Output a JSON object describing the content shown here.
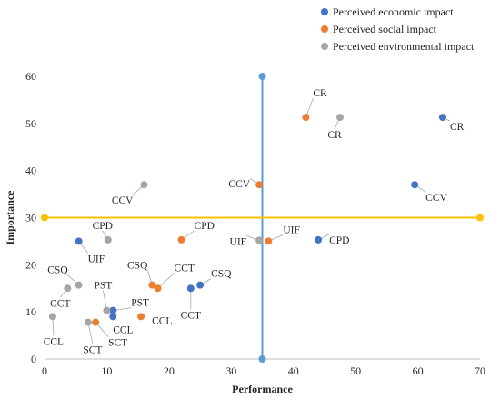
{
  "chart_data": {
    "type": "scatter",
    "title": "",
    "xlabel": "Performance",
    "ylabel": "Importance",
    "xlim": [
      0,
      70
    ],
    "ylim": [
      0,
      60
    ],
    "xticks": [
      0,
      10,
      20,
      30,
      40,
      50,
      60,
      70
    ],
    "yticks": [
      0,
      10,
      20,
      30,
      40,
      50,
      60
    ],
    "grid": false,
    "legend_position": "top-right",
    "reference_lines": [
      {
        "orientation": "vertical",
        "x": 35,
        "y_range": [
          0,
          60
        ],
        "color": "#5b9bd5"
      },
      {
        "orientation": "horizontal",
        "y": 30,
        "x_range": [
          0,
          70
        ],
        "color": "#ffc000"
      }
    ],
    "series": [
      {
        "name": "Perceived economic impact",
        "color": "#4472c4",
        "points": [
          {
            "label": "CR",
            "x": 64,
            "y": 51.3
          },
          {
            "label": "CCV",
            "x": 59.5,
            "y": 37
          },
          {
            "label": "CPD",
            "x": 44,
            "y": 25.3
          },
          {
            "label": "UIF",
            "x": 5.5,
            "y": 25
          },
          {
            "label": "CSQ",
            "x": 25,
            "y": 15.7
          },
          {
            "label": "CCT",
            "x": 23.5,
            "y": 15
          },
          {
            "label": "PST",
            "x": 11,
            "y": 10.3
          },
          {
            "label": "CCL",
            "x": 11,
            "y": 9
          }
        ]
      },
      {
        "name": "Perceived social impact",
        "color": "#ed7d31",
        "points": [
          {
            "label": "CR",
            "x": 42,
            "y": 51.3
          },
          {
            "label": "CCV",
            "x": 34.5,
            "y": 37
          },
          {
            "label": "CPD",
            "x": 22,
            "y": 25.3
          },
          {
            "label": "UIF",
            "x": 36,
            "y": 25
          },
          {
            "label": "CSQ",
            "x": 17.3,
            "y": 15.7
          },
          {
            "label": "CCT",
            "x": 18.2,
            "y": 15
          },
          {
            "label": "CCL",
            "x": 15.5,
            "y": 9
          },
          {
            "label": "SCT",
            "x": 8.2,
            "y": 7.8
          }
        ]
      },
      {
        "name": "Perceived environmental impact",
        "color": "#a5a5a5",
        "points": [
          {
            "label": "CR",
            "x": 47.5,
            "y": 51.3
          },
          {
            "label": "CCV",
            "x": 16,
            "y": 37
          },
          {
            "label": "CPD",
            "x": 10.2,
            "y": 25.3
          },
          {
            "label": "UIF",
            "x": 34.5,
            "y": 25.2
          },
          {
            "label": "CSQ",
            "x": 5.5,
            "y": 15.7
          },
          {
            "label": "CCT",
            "x": 3.7,
            "y": 15
          },
          {
            "label": "PST",
            "x": 10,
            "y": 10.3
          },
          {
            "label": "CCL",
            "x": 1.3,
            "y": 9
          },
          {
            "label": "SCT",
            "x": 7,
            "y": 7.8
          }
        ]
      }
    ]
  }
}
